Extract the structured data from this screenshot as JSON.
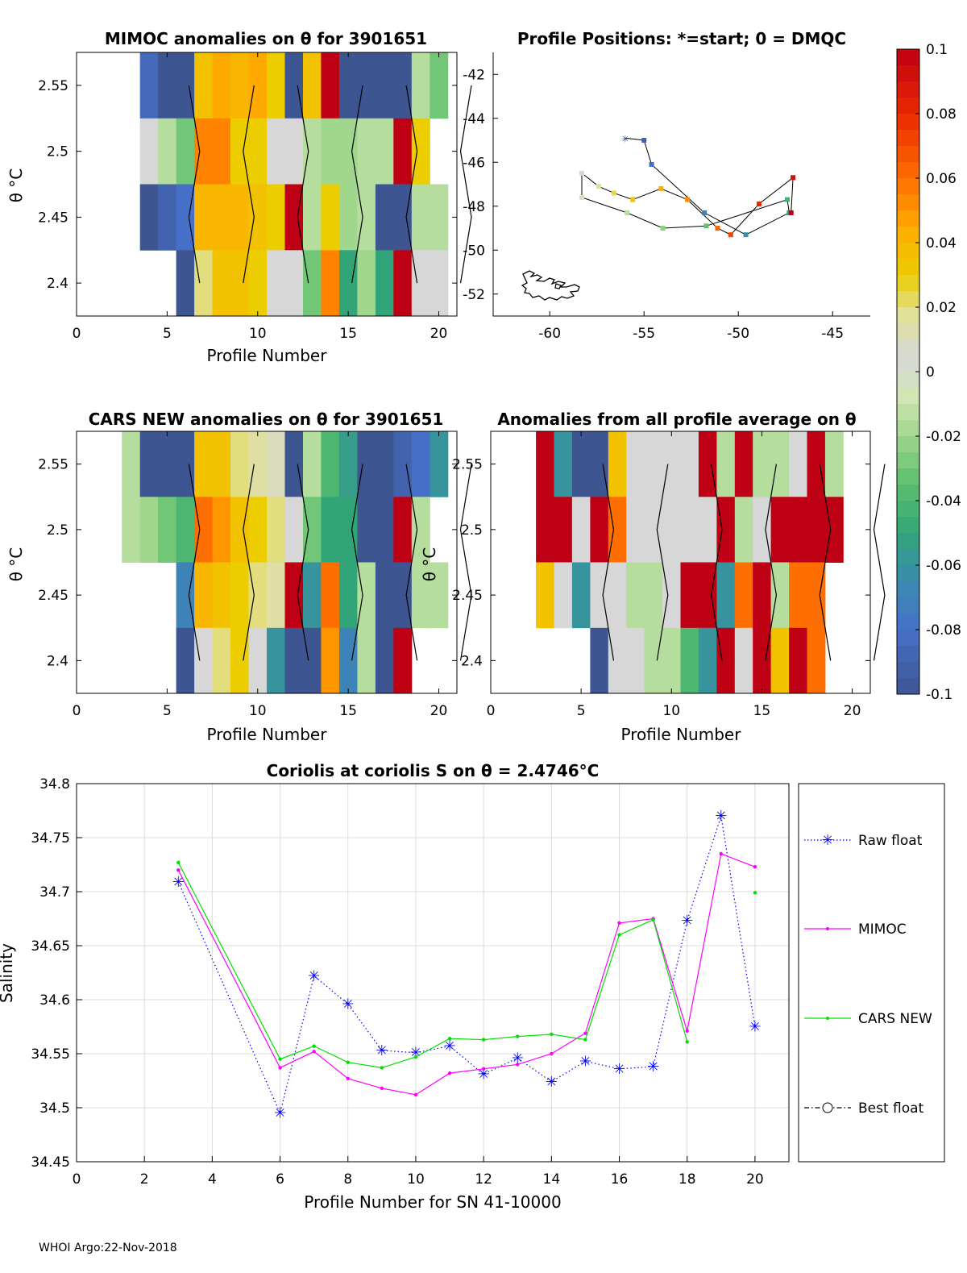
{
  "footer": "WHOI Argo:22-Nov-2018",
  "colorbar": {
    "ticks": [
      "0.1",
      "0.08",
      "0.06",
      "0.04",
      "0.02",
      "0",
      "-0.02",
      "-0.04",
      "-0.06",
      "-0.08",
      "-0.1"
    ],
    "range": [
      -0.1,
      0.1
    ]
  },
  "chart_data": [
    {
      "id": "mimoc",
      "type": "heatmap",
      "title": "MIMOC anomalies on θ  for 3901651",
      "xlabel": "Profile Number",
      "ylabel": "θ °C",
      "xlim": [
        0,
        21
      ],
      "ylim": [
        2.375,
        2.575
      ],
      "xticks": [
        "0",
        "5",
        "10",
        "15",
        "20"
      ],
      "yticks": [
        "2.4",
        "2.45",
        "2.5",
        "2.55"
      ],
      "row_centers": [
        2.55,
        2.5,
        2.45,
        2.4
      ],
      "col_start": 3,
      "values": [
        [
          null,
          -0.085,
          -0.1,
          -0.1,
          0.035,
          0.045,
          0.04,
          0.045,
          0.03,
          -0.1,
          0.035,
          0.1,
          -0.1,
          -0.1,
          -0.1,
          -0.1,
          -0.015,
          -0.03
        ],
        [
          null,
          0.005,
          -0.015,
          -0.03,
          0.055,
          0.055,
          0.03,
          0.03,
          0.005,
          0.005,
          -0.015,
          -0.02,
          -0.02,
          -0.015,
          -0.015,
          0.1,
          0.03,
          null
        ],
        [
          null,
          -0.1,
          -0.09,
          -0.08,
          0.04,
          0.04,
          0.04,
          0.035,
          0.03,
          0.1,
          -0.015,
          0.03,
          -0.02,
          -0.015,
          -0.1,
          -0.1,
          -0.015,
          -0.015
        ],
        [
          null,
          null,
          null,
          -0.1,
          0.02,
          0.035,
          0.035,
          0.03,
          0.005,
          0.005,
          -0.03,
          0.055,
          -0.05,
          -0.02,
          -0.05,
          0.1,
          0.005,
          0.005
        ]
      ]
    },
    {
      "id": "positions",
      "type": "scatter",
      "title": "Profile Positions: *=start; 0 = DMQC",
      "xlim": [
        -63,
        -43
      ],
      "ylim": [
        -53,
        -41
      ],
      "xticks": [
        "-60",
        "-55",
        "-50",
        "-45"
      ],
      "yticks": [
        "-42",
        "-44",
        "-46",
        "-48",
        "-50",
        "-52"
      ],
      "lon": [
        -56.0,
        -55.0,
        -54.6,
        -51.8,
        -49.6,
        -47.3,
        -47.4,
        -51.7,
        -54.0,
        -55.9,
        -58.3,
        -58.3,
        -57.4,
        -56.6,
        -55.6,
        -54.1,
        -52.7,
        -51.1,
        -50.4,
        -48.9,
        -47.1,
        -47.2
      ],
      "lat": [
        -44.9,
        -45.0,
        -46.1,
        -48.3,
        -49.3,
        -48.3,
        -47.7,
        -48.9,
        -49.0,
        -48.3,
        -47.6,
        -46.5,
        -47.1,
        -47.4,
        -47.7,
        -47.2,
        -47.7,
        -49.0,
        -49.3,
        -47.9,
        -46.7,
        -48.3
      ]
    },
    {
      "id": "cars",
      "type": "heatmap",
      "title": "CARS NEW anomalies on θ for 3901651",
      "xlabel": "Profile Number",
      "ylabel": "θ °C",
      "xlim": [
        0,
        21
      ],
      "ylim": [
        2.375,
        2.575
      ],
      "xticks": [
        "0",
        "5",
        "10",
        "15",
        "20"
      ],
      "yticks": [
        "2.4",
        "2.45",
        "2.5",
        "2.55"
      ],
      "row_centers": [
        2.55,
        2.5,
        2.45,
        2.4
      ],
      "col_start": 3,
      "values": [
        [
          -0.015,
          -0.1,
          -0.1,
          -0.1,
          0.035,
          0.035,
          0.02,
          0.015,
          0.01,
          -0.1,
          -0.015,
          -0.04,
          -0.055,
          -0.1,
          -0.1,
          -0.09,
          -0.08,
          -0.06
        ],
        [
          -0.015,
          -0.02,
          -0.03,
          -0.04,
          0.06,
          0.05,
          0.035,
          0.03,
          0.02,
          0.005,
          -0.03,
          -0.05,
          -0.05,
          -0.1,
          -0.1,
          0.1,
          -0.015,
          null
        ],
        [
          null,
          null,
          null,
          -0.07,
          0.04,
          0.035,
          0.03,
          0.02,
          0.015,
          0.1,
          -0.06,
          0.06,
          -0.05,
          -0.015,
          -0.1,
          -0.1,
          -0.015,
          -0.015
        ],
        [
          null,
          null,
          null,
          -0.1,
          0.005,
          0.02,
          0.03,
          0.005,
          -0.06,
          -0.1,
          -0.1,
          0.05,
          -0.07,
          -0.015,
          -0.1,
          0.1,
          null,
          null
        ]
      ]
    },
    {
      "id": "allavg",
      "type": "heatmap",
      "title": "Anomalies from all profile average on θ",
      "xlabel": "Profile Number",
      "ylabel": "θ °C",
      "xlim": [
        0,
        21
      ],
      "ylim": [
        2.375,
        2.575
      ],
      "xticks": [
        "0",
        "5",
        "10",
        "15",
        "20"
      ],
      "yticks": [
        "2.4",
        "2.45",
        "2.5",
        "2.55"
      ],
      "row_centers": [
        2.55,
        2.5,
        2.45,
        2.4
      ],
      "col_start": 3,
      "values": [
        [
          0.1,
          -0.06,
          -0.1,
          -0.1,
          0.035,
          0.005,
          0.005,
          0.005,
          0.005,
          0.1,
          -0.015,
          0.1,
          -0.015,
          -0.015,
          0.005,
          0.1,
          -0.015
        ],
        [
          0.1,
          0.1,
          0.005,
          0.1,
          0.06,
          0.005,
          0.005,
          0.005,
          0.005,
          0.005,
          0.1,
          -0.015,
          0.005,
          0.1,
          0.1,
          0.1,
          0.1
        ],
        [
          0.035,
          0.005,
          -0.06,
          0.005,
          0.005,
          -0.015,
          -0.015,
          0.005,
          0.1,
          0.1,
          -0.06,
          0.06,
          0.1,
          -0.015,
          0.06,
          0.06,
          null
        ],
        [
          null,
          null,
          null,
          -0.1,
          0.005,
          0.005,
          -0.015,
          -0.015,
          -0.04,
          -0.06,
          0.1,
          0.005,
          0.1,
          0.035,
          0.1,
          0.06,
          null
        ]
      ]
    },
    {
      "id": "salinity",
      "type": "line",
      "title": "Coriolis at coriolis S on θ = 2.4746°C",
      "xlabel": "Profile Number for SN 41-10000",
      "ylabel": "Salinity",
      "xlim": [
        0,
        21
      ],
      "ylim": [
        34.45,
        34.8
      ],
      "xticks": [
        "0",
        "2",
        "4",
        "6",
        "8",
        "10",
        "12",
        "14",
        "16",
        "18",
        "20"
      ],
      "yticks": [
        "34.45",
        "34.5",
        "34.55",
        "34.6",
        "34.65",
        "34.7",
        "34.75",
        "34.8"
      ],
      "series": [
        {
          "name": "Raw float",
          "x": [
            3,
            6,
            7,
            8,
            9,
            10,
            11,
            12,
            13,
            14,
            15,
            16,
            17,
            18,
            19,
            20
          ],
          "y": [
            34.709,
            34.495,
            34.622,
            34.596,
            34.553,
            34.551,
            34.557,
            34.531,
            34.546,
            34.524,
            34.543,
            34.536,
            34.538,
            34.673,
            34.77,
            34.575
          ]
        },
        {
          "name": "MIMOC",
          "x": [
            3,
            6,
            7,
            8,
            9,
            10,
            11,
            12,
            13,
            14,
            15,
            16,
            17,
            18,
            19,
            20
          ],
          "y": [
            34.72,
            34.537,
            34.552,
            34.527,
            34.518,
            34.512,
            34.532,
            34.536,
            34.54,
            34.55,
            34.569,
            34.671,
            34.675,
            34.571,
            34.735,
            34.723
          ]
        },
        {
          "name": "CARS NEW",
          "x": [
            3,
            6,
            7,
            8,
            9,
            10,
            11,
            12,
            13,
            14,
            15,
            16,
            17,
            18,
            20
          ],
          "y": [
            34.727,
            34.545,
            34.557,
            34.542,
            34.537,
            34.547,
            34.564,
            34.563,
            34.566,
            34.568,
            34.563,
            34.66,
            34.674,
            34.561,
            34.699
          ]
        },
        {
          "name": "Best float",
          "x": [],
          "y": []
        }
      ]
    }
  ]
}
